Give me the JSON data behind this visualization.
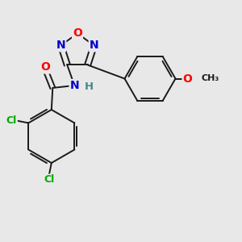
{
  "bg_color": "#e8e8e8",
  "bond_color": "#1a1a1a",
  "bond_width": 1.4,
  "atom_colors": {
    "O": "#ff0000",
    "N": "#0000cc",
    "Cl": "#00aa00",
    "C": "#1a1a1a",
    "H": "#448888"
  },
  "font_size": 9.5,
  "xlim": [
    0,
    10
  ],
  "ylim": [
    0,
    10
  ]
}
